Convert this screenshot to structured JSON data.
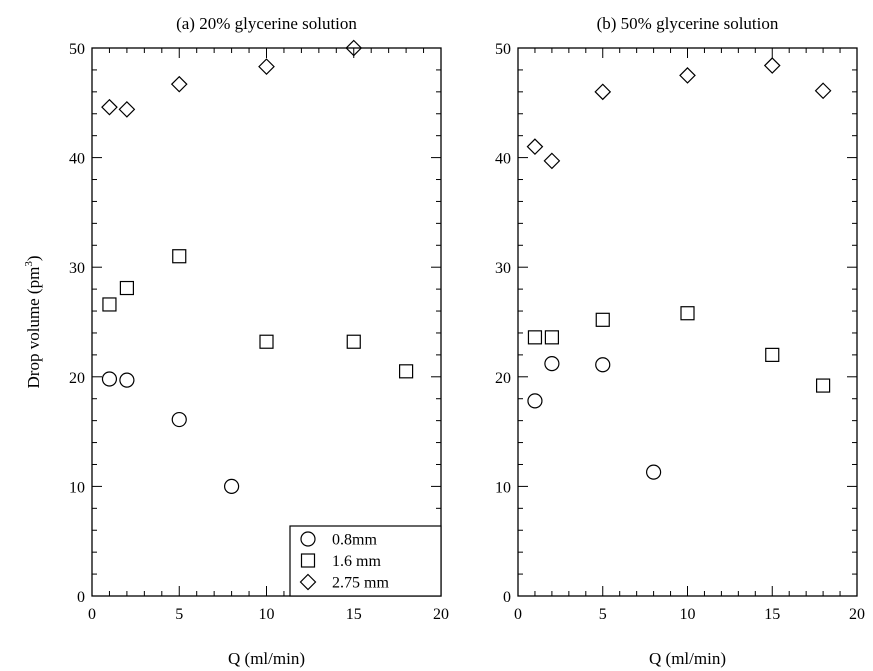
{
  "chart_data": [
    {
      "type": "scatter",
      "title": "(a) 20% glycerine solution",
      "xlabel": "Q (ml/min)",
      "ylabel": "Drop volume (pm",
      "ylabel_sup": "3",
      "ylabel_close": ")",
      "xlim": [
        0,
        20
      ],
      "ylim": [
        0,
        50
      ],
      "xticks": [
        0,
        5,
        10,
        15,
        20
      ],
      "yticks": [
        0,
        10,
        20,
        30,
        40,
        50
      ],
      "grid": false,
      "legend": "bottom-right",
      "series": [
        {
          "name": "0.8mm",
          "marker": "circle",
          "points": [
            [
              1,
              19.8
            ],
            [
              2,
              19.7
            ],
            [
              5,
              16.1
            ],
            [
              8,
              10.0
            ]
          ]
        },
        {
          "name": "1.6 mm",
          "marker": "square",
          "points": [
            [
              1,
              26.6
            ],
            [
              2,
              28.1
            ],
            [
              5,
              31.0
            ],
            [
              10,
              23.2
            ],
            [
              15,
              23.2
            ],
            [
              18,
              20.5
            ]
          ]
        },
        {
          "name": "2.75 mm",
          "marker": "diamond",
          "points": [
            [
              1,
              44.6
            ],
            [
              2,
              44.4
            ],
            [
              5,
              46.7
            ],
            [
              10,
              48.3
            ],
            [
              15,
              50.0
            ]
          ]
        }
      ]
    },
    {
      "type": "scatter",
      "title": "(b) 50% glycerine solution",
      "xlabel": "Q (ml/min)",
      "xlim": [
        0,
        20
      ],
      "ylim": [
        0,
        50
      ],
      "xticks": [
        0,
        5,
        10,
        15,
        20
      ],
      "yticks": [
        0,
        10,
        20,
        30,
        40,
        50
      ],
      "grid": false,
      "series": [
        {
          "marker": "circle",
          "points": [
            [
              1,
              17.8
            ],
            [
              2,
              21.2
            ],
            [
              5,
              21.1
            ],
            [
              8,
              11.3
            ]
          ]
        },
        {
          "marker": "square",
          "points": [
            [
              1,
              23.6
            ],
            [
              2,
              23.6
            ],
            [
              5,
              25.2
            ],
            [
              10,
              25.8
            ],
            [
              15,
              22.0
            ],
            [
              18,
              19.2
            ]
          ]
        },
        {
          "marker": "diamond",
          "points": [
            [
              1,
              41.0
            ],
            [
              2,
              39.7
            ],
            [
              5,
              46.0
            ],
            [
              10,
              47.5
            ],
            [
              15,
              48.4
            ],
            [
              18,
              46.1
            ]
          ]
        }
      ]
    }
  ]
}
